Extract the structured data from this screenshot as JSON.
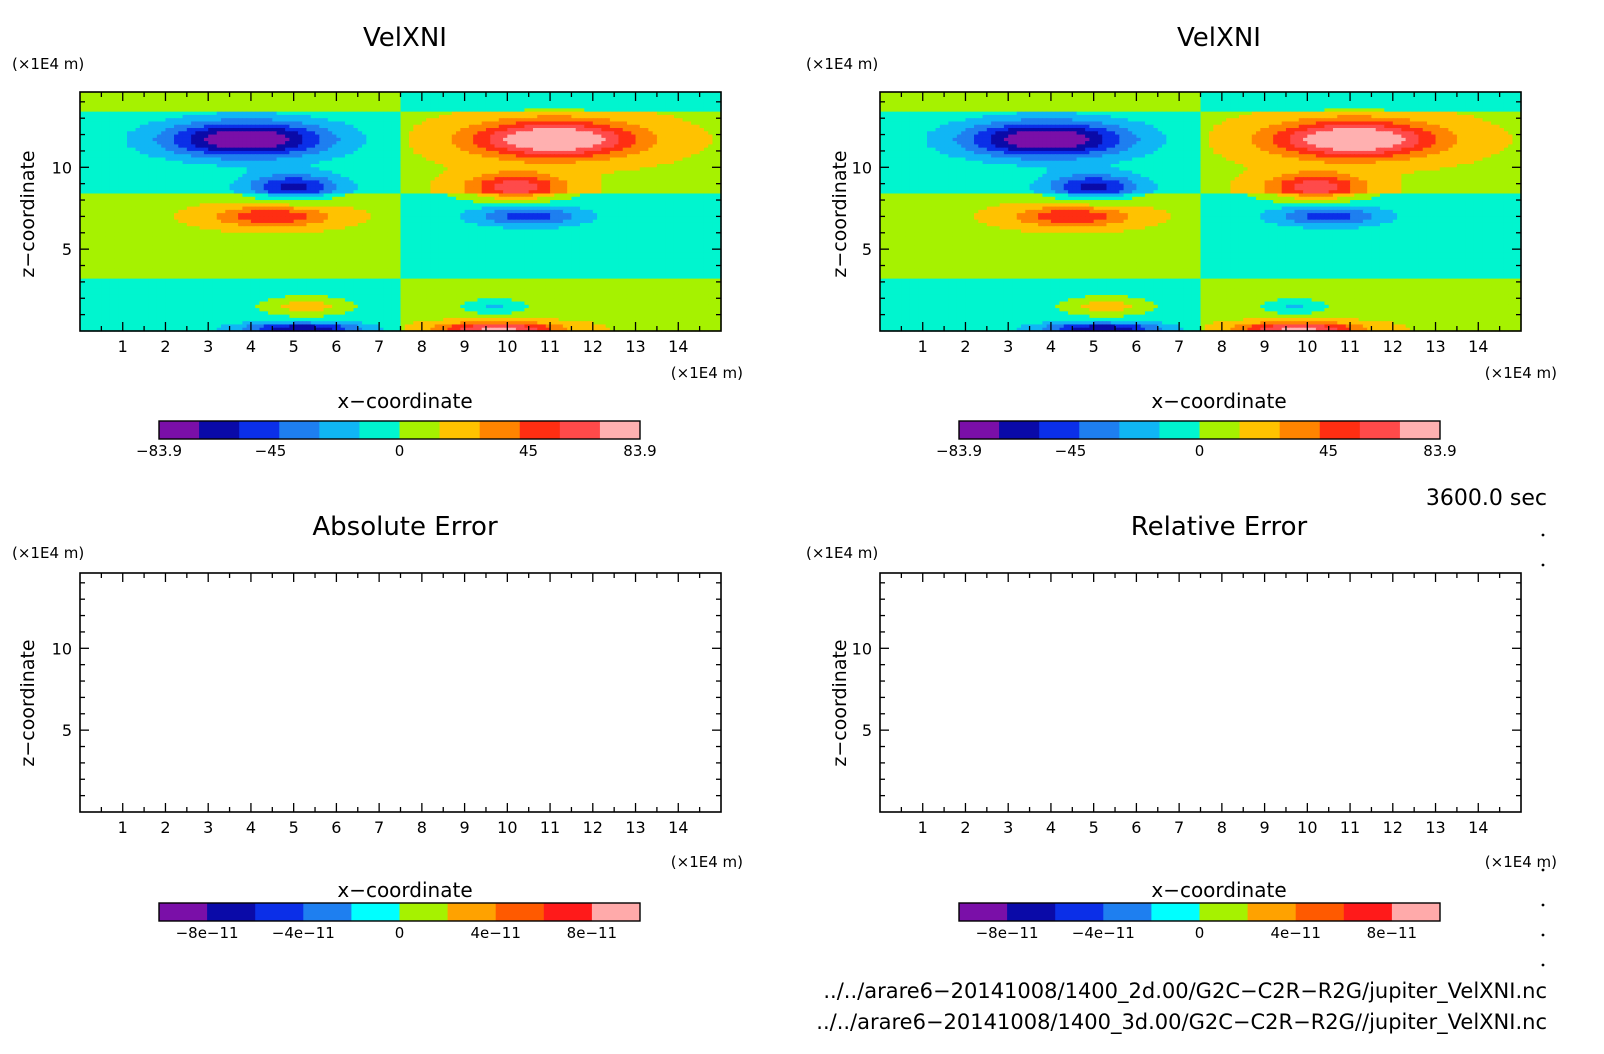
{
  "chart_data": [
    {
      "type": "heatmap",
      "title": "VelXNI",
      "xlabel": "x−coordinate",
      "ylabel": "z−coordinate",
      "x_unit": "(×1E4 m)",
      "y_unit": "(×1E4 m)",
      "xlim": [
        0,
        15
      ],
      "ylim": [
        0,
        14.6
      ],
      "x_ticks": [
        "1",
        "2",
        "3",
        "4",
        "5",
        "6",
        "7",
        "8",
        "9",
        "10",
        "11",
        "12",
        "13",
        "14"
      ],
      "y_ticks": [
        "5",
        "10"
      ],
      "colorbar_labels": [
        "−83.9",
        "−45",
        "0",
        "45",
        "83.9"
      ],
      "colorbar_values": [
        -83.9,
        -45,
        0,
        45,
        83.9
      ],
      "field_features": [
        {
          "x": 3.9,
          "z": 11.7,
          "value": -83.9,
          "sx": 1.9,
          "sz": 1.1
        },
        {
          "x": 11.1,
          "z": 11.7,
          "value": 83.9,
          "sx": 1.9,
          "sz": 1.1
        },
        {
          "x": 5.0,
          "z": 8.8,
          "value": -55,
          "sx": 1.1,
          "sz": 0.8
        },
        {
          "x": 10.2,
          "z": 8.8,
          "value": 55,
          "sx": 1.1,
          "sz": 0.8
        },
        {
          "x": 4.5,
          "z": 7.0,
          "value": 45,
          "sx": 1.3,
          "sz": 0.6
        },
        {
          "x": 10.5,
          "z": 7.0,
          "value": -45,
          "sx": 1.3,
          "sz": 0.6
        },
        {
          "x": 5.3,
          "z": 1.5,
          "value": 28,
          "sx": 0.9,
          "sz": 0.5
        },
        {
          "x": 9.7,
          "z": 1.5,
          "value": -28,
          "sx": 0.9,
          "sz": 0.5
        },
        {
          "x": 5.2,
          "z": 0.15,
          "value": -65,
          "sx": 1.4,
          "sz": 0.35
        },
        {
          "x": 9.8,
          "z": 0.15,
          "value": 65,
          "sx": 1.4,
          "sz": 0.35
        }
      ]
    },
    {
      "type": "heatmap",
      "title": "VelXNI",
      "xlabel": "x−coordinate",
      "ylabel": "z−coordinate",
      "x_unit": "(×1E4 m)",
      "y_unit": "(×1E4 m)",
      "xlim": [
        0,
        15
      ],
      "ylim": [
        0,
        14.6
      ],
      "x_ticks": [
        "1",
        "2",
        "3",
        "4",
        "5",
        "6",
        "7",
        "8",
        "9",
        "10",
        "11",
        "12",
        "13",
        "14"
      ],
      "y_ticks": [
        "5",
        "10"
      ],
      "colorbar_labels": [
        "−83.9",
        "−45",
        "0",
        "45",
        "83.9"
      ],
      "colorbar_values": [
        -83.9,
        -45,
        0,
        45,
        83.9
      ],
      "same_field_as_panel": 0
    },
    {
      "type": "heatmap",
      "title": "Absolute Error",
      "xlabel": "x−coordinate",
      "ylabel": "z−coordinate",
      "x_unit": "(×1E4 m)",
      "y_unit": "(×1E4 m)",
      "xlim": [
        0,
        15
      ],
      "ylim": [
        0,
        14.6
      ],
      "x_ticks": [
        "1",
        "2",
        "3",
        "4",
        "5",
        "6",
        "7",
        "8",
        "9",
        "10",
        "11",
        "12",
        "13",
        "14"
      ],
      "y_ticks": [
        "5",
        "10"
      ],
      "colorbar_labels": [
        "−8e−11",
        "−4e−11",
        "0",
        "4e−11",
        "8e−11"
      ],
      "colorbar_values": [
        -8e-11,
        -4e-11,
        0,
        4e-11,
        8e-11
      ],
      "field": "empty"
    },
    {
      "type": "heatmap",
      "title": "Relative Error",
      "xlabel": "x−coordinate",
      "ylabel": "z−coordinate",
      "x_unit": "(×1E4 m)",
      "y_unit": "(×1E4 m)",
      "xlim": [
        0,
        15
      ],
      "ylim": [
        0,
        14.6
      ],
      "x_ticks": [
        "1",
        "2",
        "3",
        "4",
        "5",
        "6",
        "7",
        "8",
        "9",
        "10",
        "11",
        "12",
        "13",
        "14"
      ],
      "y_ticks": [
        "5",
        "10"
      ],
      "colorbar_labels": [
        "−8e−11",
        "−4e−11",
        "0",
        "4e−11",
        "8e−11"
      ],
      "colorbar_values": [
        -8e-11,
        -4e-11,
        0,
        4e-11,
        8e-11
      ],
      "field": "empty"
    }
  ],
  "palette_velxni": [
    "#7a0fa8",
    "#0a0aa8",
    "#0b2fe8",
    "#1e7ff0",
    "#10b6f5",
    "#00f5cf",
    "#a6f200",
    "#ffc200",
    "#ff8400",
    "#ff2e12",
    "#ff4a4a",
    "#ffb0b0"
  ],
  "palette_error": [
    "#7a0fa8",
    "#0a0aa8",
    "#0b2fe8",
    "#1e7ff0",
    "#00ffff",
    "#a6f200",
    "#ffa200",
    "#ff5a00",
    "#ff1a1a",
    "#ffaaaa"
  ],
  "time_label": "3600.0 sec",
  "file_paths": [
    "../../arare6−20141008/1400_2d.00/G2C−C2R−R2G/jupiter_VelXNI.nc",
    "../../arare6−20141008/1400_3d.00/G2C−C2R−R2G//jupiter_VelXNI.nc"
  ]
}
